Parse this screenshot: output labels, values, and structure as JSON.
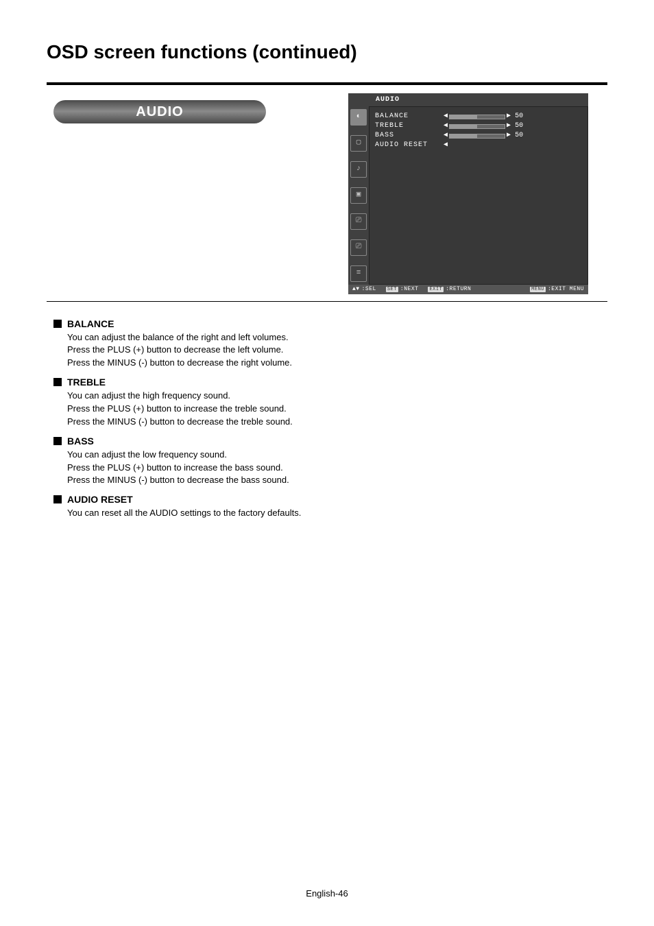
{
  "page": {
    "title": "OSD screen functions (continued)",
    "pill_label": "AUDIO",
    "footer": "English-46"
  },
  "osd": {
    "header": "AUDIO",
    "bg_color": "#404040",
    "text_color": "#ffffff",
    "icons": [
      {
        "glyph": "◐",
        "active": true
      },
      {
        "glyph": "▢",
        "active": false
      },
      {
        "glyph": "♪",
        "active": false
      },
      {
        "glyph": "▣",
        "active": false
      },
      {
        "glyph": "⎚",
        "active": false
      },
      {
        "glyph": "⎚",
        "active": false
      },
      {
        "glyph": "≡",
        "active": false
      }
    ],
    "items": [
      {
        "label": "BALANCE",
        "value": 50,
        "has_slider": true
      },
      {
        "label": "TREBLE",
        "value": 50,
        "has_slider": true
      },
      {
        "label": "BASS",
        "value": 50,
        "has_slider": true
      },
      {
        "label": "AUDIO RESET",
        "value": null,
        "has_slider": false
      }
    ],
    "footer": {
      "sel": {
        "icon": "▲▼",
        "label": ":SEL"
      },
      "next": {
        "badge": "SET",
        "label": ":NEXT"
      },
      "return": {
        "badge": "EXIT",
        "label": ":RETURN"
      },
      "exitmenu": {
        "badge": "MENU",
        "label": ":EXIT MENU"
      }
    }
  },
  "descriptions": [
    {
      "heading": "BALANCE",
      "lines": [
        "You can adjust the balance of the right and left volumes.",
        "Press the PLUS (+) button to decrease the left volume.",
        "Press the MINUS (-) button to decrease the right volume."
      ]
    },
    {
      "heading": "TREBLE",
      "lines": [
        "You can adjust the high frequency sound.",
        "Press the PLUS (+) button to increase the treble sound.",
        "Press the MINUS (-) button to decrease the treble sound."
      ]
    },
    {
      "heading": "BASS",
      "lines": [
        "You can adjust the low frequency sound.",
        "Press the PLUS (+) button to increase the bass sound.",
        "Press the MINUS (-) button to decrease the bass sound."
      ]
    },
    {
      "heading": "AUDIO RESET",
      "lines": [
        "You can reset all the AUDIO settings to the factory defaults."
      ]
    }
  ]
}
